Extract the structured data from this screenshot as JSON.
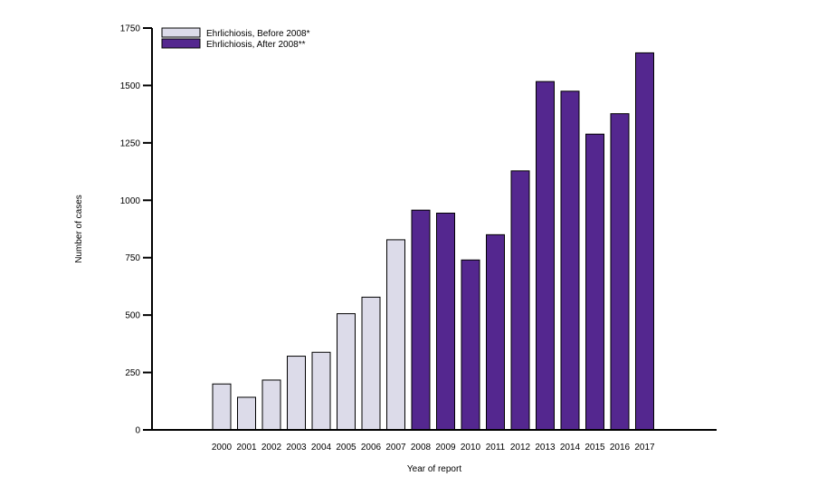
{
  "chart_data": {
    "type": "bar",
    "title": "",
    "xlabel": "Year of report",
    "ylabel": "Number of cases",
    "ylim": [
      0,
      1750
    ],
    "yticks": [
      0,
      250,
      500,
      750,
      1000,
      1250,
      1500,
      1750
    ],
    "ytick_labels": [
      "0",
      "250",
      "500",
      "750",
      "1000",
      "1250",
      "1500",
      "1750"
    ],
    "categories": [
      "2000",
      "2001",
      "2002",
      "2003",
      "2004",
      "2005",
      "2006",
      "2007",
      "2008",
      "2009",
      "2010",
      "2011",
      "2012",
      "2013",
      "2014",
      "2015",
      "2016",
      "2017"
    ],
    "series": [
      {
        "name": "Ehrlichiosis, Before 2008*",
        "color": "#dcdbe9",
        "values": [
          200,
          142,
          217,
          321,
          338,
          506,
          578,
          828,
          null,
          null,
          null,
          null,
          null,
          null,
          null,
          null,
          null,
          null
        ]
      },
      {
        "name": "Ehrlichiosis, After 2008**",
        "color": "#54278f",
        "values": [
          null,
          null,
          null,
          null,
          null,
          null,
          null,
          null,
          957,
          944,
          740,
          850,
          1128,
          1517,
          1475,
          1288,
          1377,
          1642
        ]
      }
    ],
    "grid": false,
    "legend_position": "top-left"
  }
}
